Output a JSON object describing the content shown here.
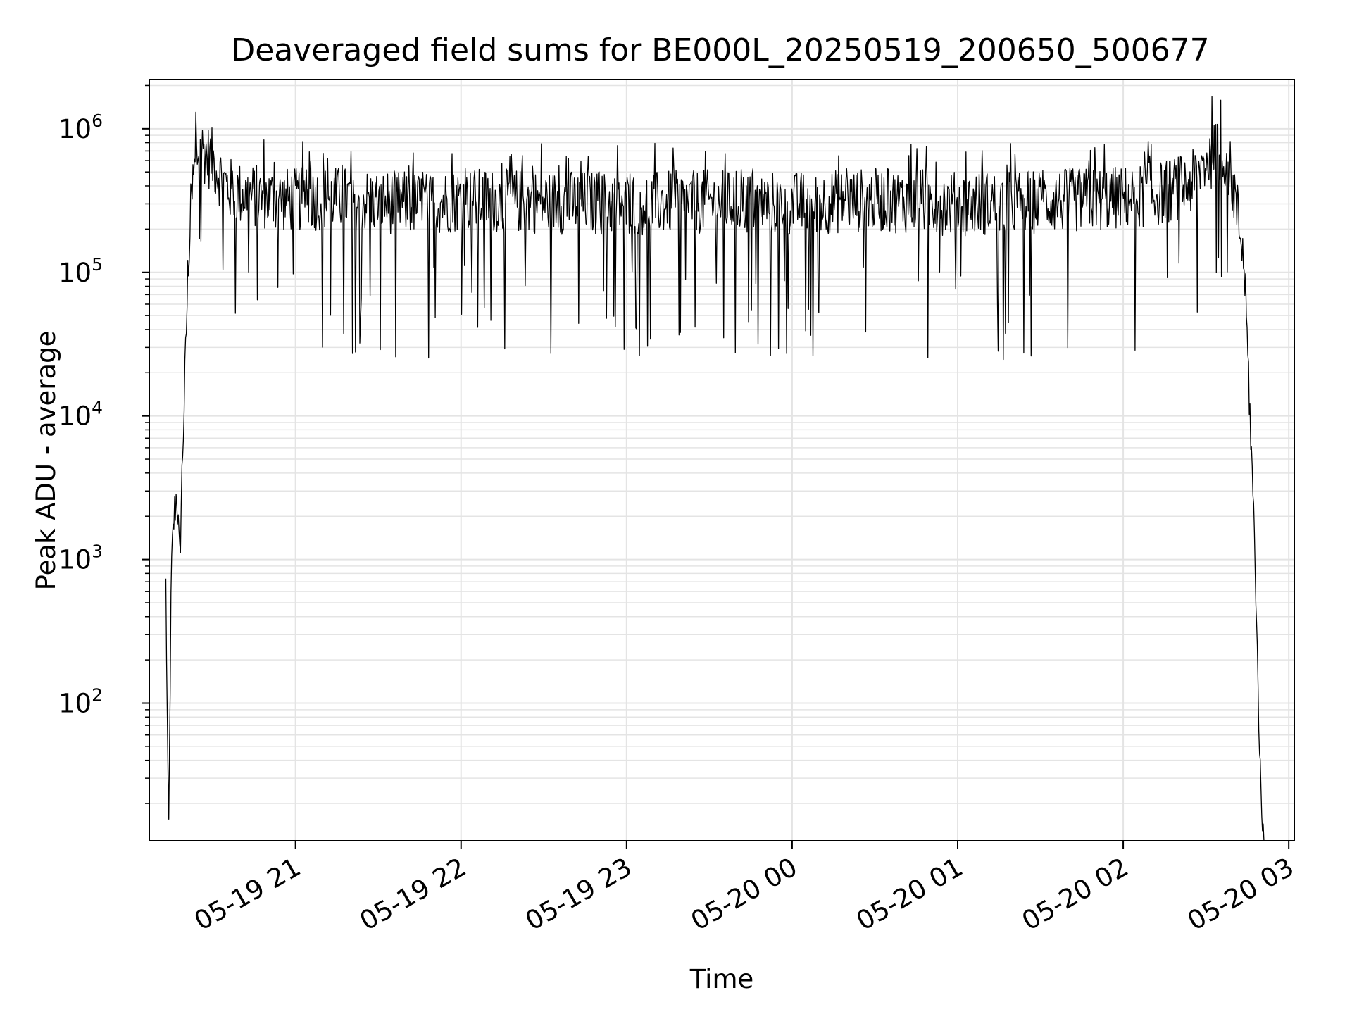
{
  "chart_data": {
    "type": "line",
    "title": "Deaveraged field sums for BE000L_20250519_200650_500677",
    "xlabel": "Time",
    "ylabel": "Peak ADU - average",
    "y_scale": "log",
    "grid": true,
    "grid_minor": true,
    "line_color": "#000000",
    "x_axis_type": "datetime",
    "xlim": [
      "2025-05-19 20:07",
      "2025-05-20 03:02"
    ],
    "ylim": [
      11,
      2200000
    ],
    "x_ticks": [
      {
        "value": "2025-05-19 21:00",
        "label": "05-19 21"
      },
      {
        "value": "2025-05-19 22:00",
        "label": "05-19 22"
      },
      {
        "value": "2025-05-19 23:00",
        "label": "05-19 23"
      },
      {
        "value": "2025-05-20 00:00",
        "label": "05-20 00"
      },
      {
        "value": "2025-05-20 01:00",
        "label": "05-20 01"
      },
      {
        "value": "2025-05-20 02:00",
        "label": "05-20 02"
      },
      {
        "value": "2025-05-20 03:00",
        "label": "05-20 03"
      }
    ],
    "y_ticks": [
      {
        "value": 100,
        "base": "10",
        "exp": "2"
      },
      {
        "value": 1000,
        "base": "10",
        "exp": "3"
      },
      {
        "value": 10000,
        "base": "10",
        "exp": "4"
      },
      {
        "value": 100000,
        "base": "10",
        "exp": "5"
      },
      {
        "value": 1000000,
        "base": "10",
        "exp": "6"
      }
    ],
    "series": [
      {
        "x": [
          "2025-05-19 20:13",
          "2025-05-19 20:14",
          "2025-05-19 20:15",
          "2025-05-19 20:16",
          "2025-05-19 20:17",
          "2025-05-19 20:18",
          "2025-05-19 20:19",
          "2025-05-19 20:20",
          "2025-05-19 20:21",
          "2025-05-19 20:22",
          "2025-05-19 20:23",
          "2025-05-19 20:24",
          "2025-05-19 20:25",
          "2025-05-19 20:26",
          "2025-05-19 20:28",
          "2025-05-19 20:30",
          "2025-05-19 20:32",
          "2025-05-19 20:34",
          "2025-05-19 20:36",
          "2025-05-19 20:40",
          "2025-05-19 20:45",
          "2025-05-19 20:50",
          "2025-05-19 20:55",
          "2025-05-19 21:00",
          "2025-05-19 21:15",
          "2025-05-19 21:30",
          "2025-05-19 21:45",
          "2025-05-19 22:00",
          "2025-05-19 22:30",
          "2025-05-19 23:00",
          "2025-05-19 23:30",
          "2025-05-20 00:00",
          "2025-05-20 00:30",
          "2025-05-20 01:00",
          "2025-05-20 01:30",
          "2025-05-20 02:00",
          "2025-05-20 02:15",
          "2025-05-20 02:25",
          "2025-05-20 02:30",
          "2025-05-20 02:35",
          "2025-05-20 02:38",
          "2025-05-20 02:41",
          "2025-05-20 02:44",
          "2025-05-20 02:46",
          "2025-05-20 02:48",
          "2025-05-20 02:49",
          "2025-05-20 02:50",
          "2025-05-20 02:51"
        ],
        "y": [
          650,
          11,
          800,
          2000,
          3000,
          900,
          5000,
          20000,
          100000,
          250000,
          450000,
          600000,
          700000,
          720000,
          650000,
          600000,
          500000,
          420000,
          380000,
          350000,
          340000,
          330000,
          320000,
          320000,
          330000,
          310000,
          300000,
          320000,
          310000,
          300000,
          310000,
          300000,
          320000,
          300000,
          310000,
          330000,
          360000,
          420000,
          600000,
          700000,
          600000,
          300000,
          100000,
          10000,
          800,
          100,
          20,
          11
        ]
      }
    ]
  }
}
